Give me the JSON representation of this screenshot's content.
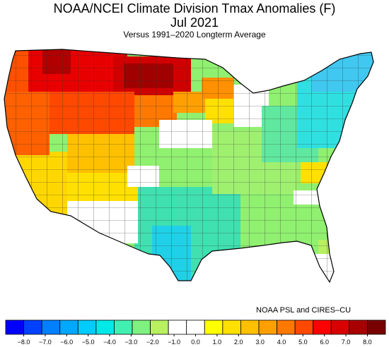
{
  "header": {
    "title": "NOAA/NCEI Climate Division Tmax Anomalies (F)",
    "period": "Jul 2021",
    "subtitle": "Versus 1991–2020 Longterm Average"
  },
  "credit": "NOAA PSL and CIRES–CU",
  "legend": {
    "tick_labels": [
      "−8.0",
      "−7.0",
      "−6.0",
      "−5.0",
      "−4.0",
      "−3.0",
      "−2.0",
      "−1.0",
      "0.0",
      "1.0",
      "2.0",
      "3.0",
      "4.0",
      "5.0",
      "6.0",
      "7.0",
      "8.0"
    ],
    "colors": [
      "#0000ff",
      "#0040ff",
      "#0080ff",
      "#00a8ff",
      "#00ccff",
      "#00e8e8",
      "#40f0b0",
      "#80f080",
      "#b8f060",
      "#ffffff",
      "#ffffff",
      "#ffff00",
      "#ffe000",
      "#ffc000",
      "#ffa000",
      "#ff7800",
      "#ff4800",
      "#ff0000",
      "#d80000",
      "#a80000",
      "#780000"
    ]
  }
}
